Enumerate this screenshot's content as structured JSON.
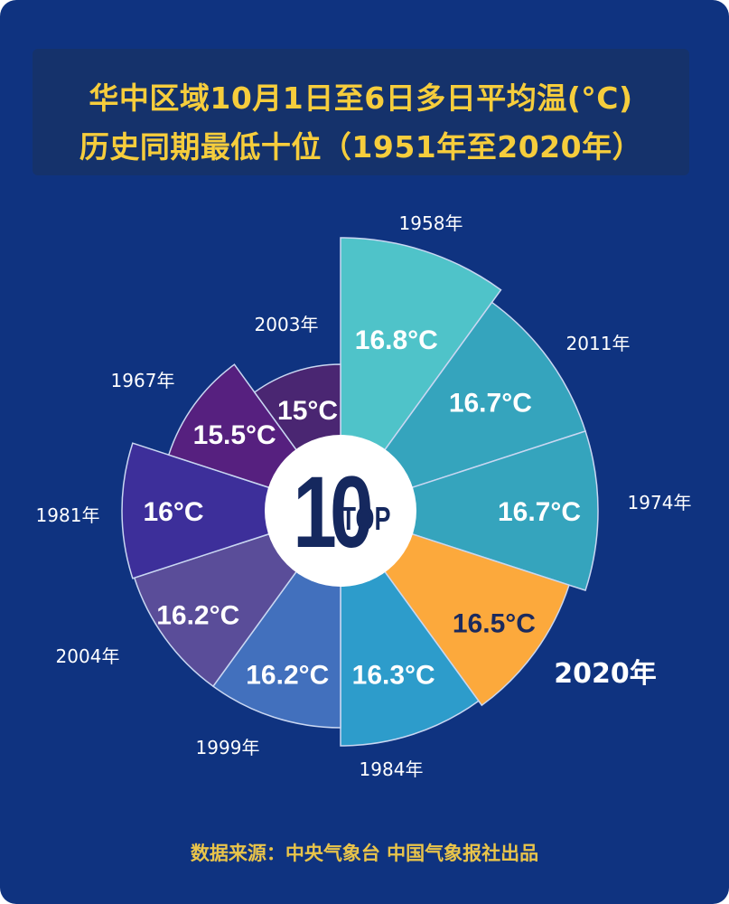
{
  "title": {
    "line1": "华中区域10月1日至6日多日平均温(°C)",
    "line2": "历史同期最低十位（1951年至2020年）"
  },
  "center_badge": {
    "big": "10",
    "small": "TOP"
  },
  "footer": "数据来源：中央气象台  中国气象报社出品",
  "colors": {
    "background": "#0f3380",
    "title_box": "#15326b",
    "title_text": "#f6cd3c",
    "highlight": "#fca93c"
  },
  "chart_data": {
    "type": "pie",
    "subtype": "nightingale-rose",
    "title": "华中区域10月1日至6日多日平均温(°C) 历史同期最低十位（1951年至2020年）",
    "unit": "°C",
    "categories": [
      "1958年",
      "2011年",
      "1974年",
      "2020年",
      "1984年",
      "1999年",
      "2004年",
      "1981年",
      "1967年",
      "2003年"
    ],
    "values": [
      16.8,
      16.7,
      16.7,
      16.5,
      16.3,
      16.2,
      16.2,
      16.0,
      15.5,
      15.0
    ],
    "labels": [
      "16.8°C",
      "16.7°C",
      "16.7°C",
      "16.5°C",
      "16.3°C",
      "16.2°C",
      "16.2°C",
      "16°C",
      "15.5°C",
      "15°C"
    ],
    "slice_colors": [
      "#4fc3c9",
      "#35a4bd",
      "#35a4bd",
      "#fca93c",
      "#2d9ccb",
      "#4270bd",
      "#5a4d99",
      "#3d2f9a",
      "#56207f",
      "#4a2672"
    ],
    "highlight": "2020年",
    "legend": "none"
  }
}
